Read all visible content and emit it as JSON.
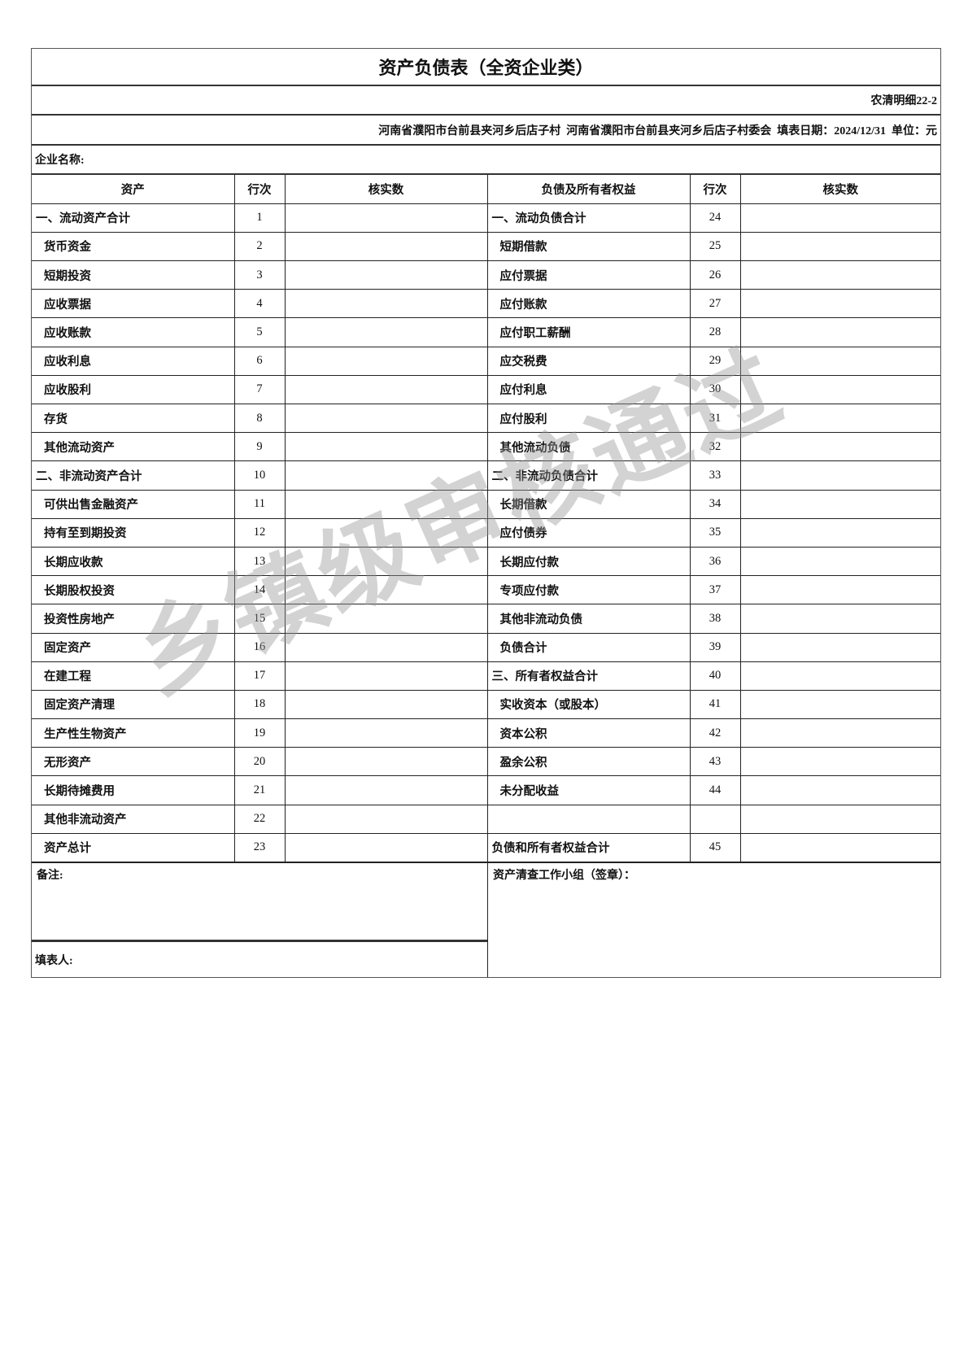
{
  "title": "资产负债表（全资企业类）",
  "form_code": "农清明细22-2",
  "info_line": "河南省濮阳市台前县夹河乡后店子村  河南省濮阳市台前县夹河乡后店子村委会  填表日期：2024/12/31  单位：元",
  "enterprise_label": "企业名称:",
  "headers": [
    "资产",
    "行次",
    "核实数",
    "负债及所有者权益",
    "行次",
    "核实数"
  ],
  "rows": [
    {
      "left": "一、流动资产合计",
      "ln": "1",
      "lsec": true,
      "right": "一、流动负债合计",
      "rn": "24",
      "rsec": true
    },
    {
      "left": "货币资金",
      "ln": "2",
      "right": "短期借款",
      "rn": "25"
    },
    {
      "left": "短期投资",
      "ln": "3",
      "right": "应付票据",
      "rn": "26"
    },
    {
      "left": "应收票据",
      "ln": "4",
      "right": "应付账款",
      "rn": "27"
    },
    {
      "left": "应收账款",
      "ln": "5",
      "right": "应付职工薪酬",
      "rn": "28"
    },
    {
      "left": "应收利息",
      "ln": "6",
      "right": "应交税费",
      "rn": "29"
    },
    {
      "left": "应收股利",
      "ln": "7",
      "right": "应付利息",
      "rn": "30"
    },
    {
      "left": "存货",
      "ln": "8",
      "right": "应付股利",
      "rn": "31"
    },
    {
      "left": "其他流动资产",
      "ln": "9",
      "right": "其他流动负债",
      "rn": "32"
    },
    {
      "left": "二、非流动资产合计",
      "ln": "10",
      "lsec": true,
      "right": "二、非流动负债合计",
      "rn": "33",
      "rsec": true
    },
    {
      "left": "可供出售金融资产",
      "ln": "11",
      "right": "长期借款",
      "rn": "34"
    },
    {
      "left": "持有至到期投资",
      "ln": "12",
      "right": "应付债券",
      "rn": "35"
    },
    {
      "left": "长期应收款",
      "ln": "13",
      "right": "长期应付款",
      "rn": "36"
    },
    {
      "left": "长期股权投资",
      "ln": "14",
      "right": "专项应付款",
      "rn": "37"
    },
    {
      "left": "投资性房地产",
      "ln": "15",
      "right": "其他非流动负债",
      "rn": "38"
    },
    {
      "left": "固定资产",
      "ln": "16",
      "right": "负债合计",
      "rn": "39"
    },
    {
      "left": "在建工程",
      "ln": "17",
      "right": "三、所有者权益合计",
      "rn": "40",
      "rsec": true
    },
    {
      "left": "固定资产清理",
      "ln": "18",
      "right": "实收资本（或股本）",
      "rn": "41"
    },
    {
      "left": "生产性生物资产",
      "ln": "19",
      "right": "资本公积",
      "rn": "42"
    },
    {
      "left": "无形资产",
      "ln": "20",
      "right": "盈余公积",
      "rn": "43"
    },
    {
      "left": "长期待摊费用",
      "ln": "21",
      "right": "未分配收益",
      "rn": "44"
    },
    {
      "left": "其他非流动资产",
      "ln": "22",
      "right": "",
      "rn": ""
    },
    {
      "left": "资产总计",
      "ln": "23",
      "right": "负债和所有者权益合计",
      "rn": "45",
      "rsec": true
    }
  ],
  "remark_label": "备注:",
  "filler_label": "填表人:",
  "team_label": "资产清查工作小组（签章）：",
  "watermark": "乡镇级审核通过"
}
